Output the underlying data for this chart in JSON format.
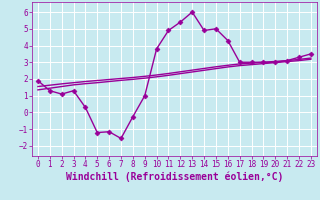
{
  "xlabel": "Windchill (Refroidissement éolien,°C)",
  "background_color": "#c8eaf0",
  "line_color": "#990099",
  "grid_color": "#ffffff",
  "x_hours": [
    0,
    1,
    2,
    3,
    4,
    5,
    6,
    7,
    8,
    9,
    10,
    11,
    12,
    13,
    14,
    15,
    16,
    17,
    18,
    19,
    20,
    21,
    22,
    23
  ],
  "y_main": [
    1.9,
    1.3,
    1.1,
    1.3,
    0.3,
    -1.2,
    -1.15,
    -1.55,
    -0.25,
    1.0,
    3.8,
    4.9,
    5.4,
    6.0,
    4.9,
    5.0,
    4.3,
    3.0,
    3.0,
    3.0,
    3.0,
    3.1,
    3.3,
    3.5
  ],
  "y_trend1": [
    1.35,
    1.45,
    1.55,
    1.65,
    1.72,
    1.78,
    1.85,
    1.92,
    1.98,
    2.05,
    2.13,
    2.22,
    2.32,
    2.42,
    2.52,
    2.62,
    2.72,
    2.8,
    2.86,
    2.92,
    2.98,
    3.04,
    3.1,
    3.18
  ],
  "y_trend2": [
    1.55,
    1.63,
    1.71,
    1.78,
    1.85,
    1.91,
    1.97,
    2.03,
    2.09,
    2.16,
    2.24,
    2.33,
    2.43,
    2.53,
    2.63,
    2.73,
    2.82,
    2.9,
    2.95,
    3.0,
    3.05,
    3.1,
    3.17,
    3.25
  ],
  "ylim": [
    -2.6,
    6.6
  ],
  "xlim": [
    -0.5,
    23.5
  ],
  "yticks": [
    -2,
    -1,
    0,
    1,
    2,
    3,
    4,
    5,
    6
  ],
  "xticks": [
    0,
    1,
    2,
    3,
    4,
    5,
    6,
    7,
    8,
    9,
    10,
    11,
    12,
    13,
    14,
    15,
    16,
    17,
    18,
    19,
    20,
    21,
    22,
    23
  ],
  "marker": "D",
  "markersize": 2.5,
  "linewidth": 1.0,
  "tick_fontsize": 5.5,
  "label_fontsize": 7.0
}
